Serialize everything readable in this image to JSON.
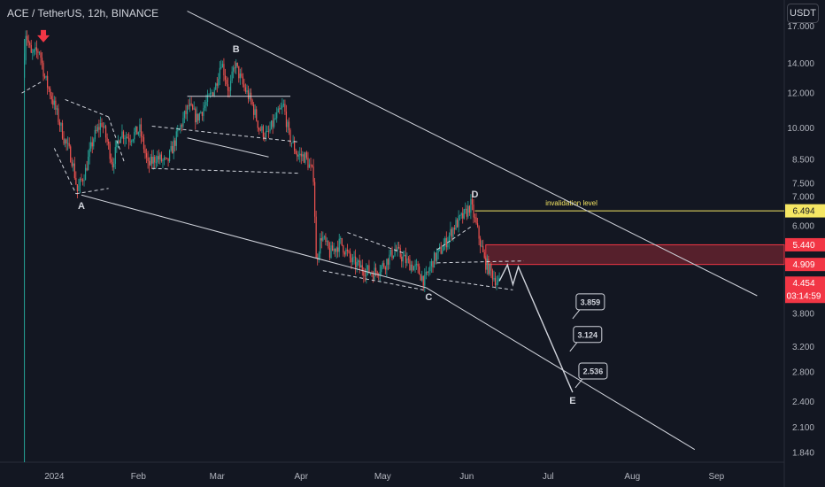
{
  "header": {
    "ticker_title": "ACE / TetherUS, 12h, BINANCE",
    "currency_button": "USDT"
  },
  "colors": {
    "background": "#131722",
    "up_candle": "#26a69a",
    "down_candle": "#ef5350",
    "drawing": "#d1d4dc",
    "invalidation": "#f5e663",
    "zone": "#f23645"
  },
  "chart_data": {
    "type": "candlestick",
    "symbol": "ACE / TetherUS",
    "interval": "12h",
    "exchange": "BINANCE",
    "y_scale": "log",
    "ylim": [
      1.75,
      19.5
    ],
    "xlim": [
      "2023-12-12",
      "2024-09-26"
    ],
    "y_ticks": [
      "17.000",
      "14.000",
      "12.000",
      "10.000",
      "8.500",
      "7.500",
      "7.000",
      "6.000",
      "3.800",
      "3.200",
      "2.800",
      "2.400",
      "2.100",
      "1.840"
    ],
    "x_ticks": [
      {
        "label": "2024",
        "date": "2024-01-01"
      },
      {
        "label": "Feb",
        "date": "2024-02-01"
      },
      {
        "label": "Mar",
        "date": "2024-03-01"
      },
      {
        "label": "Apr",
        "date": "2024-04-01"
      },
      {
        "label": "May",
        "date": "2024-05-01"
      },
      {
        "label": "Jun",
        "date": "2024-06-01"
      },
      {
        "label": "Jul",
        "date": "2024-07-01"
      },
      {
        "label": "Aug",
        "date": "2024-08-01"
      },
      {
        "label": "Sep",
        "date": "2024-09-01"
      }
    ],
    "price_path": [
      [
        "2023-12-21",
        13.0
      ],
      [
        "2023-12-22",
        16.5
      ],
      [
        "2023-12-24",
        14.6
      ],
      [
        "2023-12-27",
        15.0
      ],
      [
        "2023-12-29",
        13.0
      ],
      [
        "2023-12-31",
        12.0
      ],
      [
        "2024-01-02",
        11.0
      ],
      [
        "2024-01-05",
        9.5
      ],
      [
        "2024-01-08",
        8.5
      ],
      [
        "2024-01-10",
        7.2
      ],
      [
        "2024-01-13",
        8.0
      ],
      [
        "2024-01-16",
        9.5
      ],
      [
        "2024-01-19",
        10.3
      ],
      [
        "2024-01-23",
        8.3
      ],
      [
        "2024-01-26",
        9.8
      ],
      [
        "2024-01-29",
        9.5
      ],
      [
        "2024-02-02",
        9.9
      ],
      [
        "2024-02-05",
        8.2
      ],
      [
        "2024-02-08",
        8.6
      ],
      [
        "2024-02-12",
        8.3
      ],
      [
        "2024-02-16",
        9.7
      ],
      [
        "2024-02-20",
        11.2
      ],
      [
        "2024-02-23",
        10.5
      ],
      [
        "2024-02-27",
        11.5
      ],
      [
        "2024-03-01",
        12.5
      ],
      [
        "2024-03-03",
        14.2
      ],
      [
        "2024-03-06",
        12.0
      ],
      [
        "2024-03-08",
        14.0
      ],
      [
        "2024-03-11",
        12.5
      ],
      [
        "2024-03-14",
        11.5
      ],
      [
        "2024-03-17",
        10.0
      ],
      [
        "2024-03-20",
        9.6
      ],
      [
        "2024-03-23",
        10.5
      ],
      [
        "2024-03-26",
        11.2
      ],
      [
        "2024-03-28",
        9.6
      ],
      [
        "2024-03-31",
        8.7
      ],
      [
        "2024-04-03",
        8.6
      ],
      [
        "2024-04-06",
        7.8
      ],
      [
        "2024-04-07",
        5.0
      ],
      [
        "2024-04-09",
        5.7
      ],
      [
        "2024-04-12",
        5.2
      ],
      [
        "2024-04-16",
        5.5
      ],
      [
        "2024-04-20",
        5.0
      ],
      [
        "2024-04-24",
        4.8
      ],
      [
        "2024-04-28",
        4.7
      ],
      [
        "2024-05-02",
        4.9
      ],
      [
        "2024-05-06",
        5.3
      ],
      [
        "2024-05-10",
        5.0
      ],
      [
        "2024-05-14",
        4.8
      ],
      [
        "2024-05-17",
        4.5
      ],
      [
        "2024-05-20",
        5.0
      ],
      [
        "2024-05-24",
        5.4
      ],
      [
        "2024-05-28",
        6.0
      ],
      [
        "2024-06-01",
        6.4
      ],
      [
        "2024-06-03",
        6.7
      ],
      [
        "2024-06-05",
        6.0
      ],
      [
        "2024-06-08",
        5.0
      ],
      [
        "2024-06-11",
        4.65
      ],
      [
        "2024-06-13",
        4.454
      ]
    ],
    "current_price": "4.454",
    "countdown": "03:14:59",
    "price_labels": [
      {
        "value": "6.494",
        "color": "#f5e663",
        "text_color": "#131722"
      },
      {
        "value": "5.440",
        "color": "#f23645",
        "text_color": "#ffffff"
      },
      {
        "value": "4.909",
        "color": "#f23645",
        "text_color": "#ffffff"
      },
      {
        "value": "4.454",
        "color": "#f23645",
        "text_color": "#ffffff"
      }
    ],
    "invalidation_line": {
      "text": "invalidation level",
      "price": 6.494
    },
    "resistance_zone": {
      "top": 5.44,
      "bottom": 4.909
    },
    "wave_points": [
      {
        "label": "A",
        "date": "2024-01-11",
        "price": 7.0
      },
      {
        "label": "B",
        "date": "2024-03-08",
        "price": 14.3
      },
      {
        "label": "C",
        "date": "2024-05-18",
        "price": 4.35
      },
      {
        "label": "D",
        "date": "2024-06-04",
        "price": 6.8
      },
      {
        "label": "E",
        "date": "2024-07-10",
        "price": 2.52
      }
    ],
    "targets": [
      {
        "value": "3.859",
        "date": "2024-07-10",
        "price": 3.7
      },
      {
        "value": "3.124",
        "date": "2024-07-09",
        "price": 3.12
      },
      {
        "value": "2.536",
        "date": "2024-07-11",
        "price": 2.58
      }
    ],
    "projection_path": [
      [
        "2024-06-13",
        4.5
      ],
      [
        "2024-06-16",
        4.9
      ],
      [
        "2024-06-18",
        4.42
      ],
      [
        "2024-06-20",
        4.85
      ],
      [
        "2024-07-10",
        2.52
      ]
    ]
  }
}
